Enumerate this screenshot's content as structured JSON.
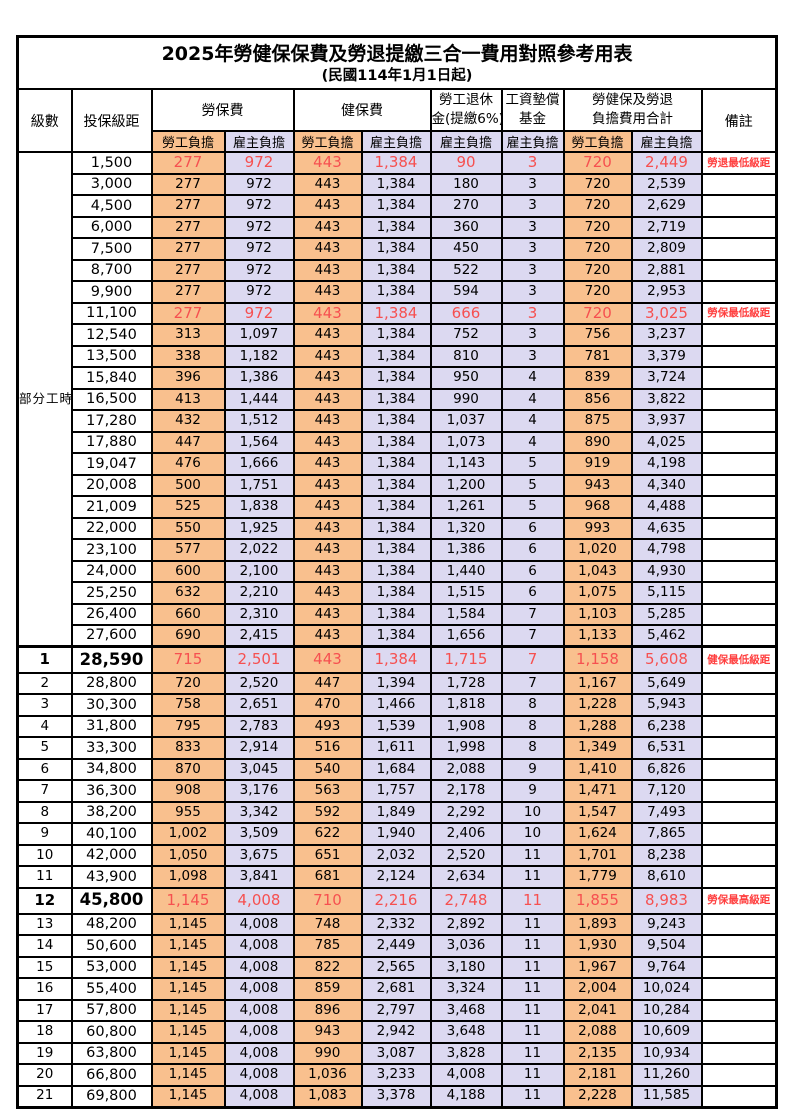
{
  "title": "2025年勞健保保費及勞退提繳三合一費用對照參考用表",
  "subtitle": "(民國114年1月1日起)",
  "colors": {
    "employee_column_bg": "#F9C08E",
    "employer_column_bg": "#DCD9F1",
    "highlight_number_red": "#F65050",
    "remark_red": "#FF4040",
    "border": "#000000"
  },
  "header": {
    "level": "級數",
    "bracket": "投保級距",
    "labor_insurance": "勞保費",
    "health_insurance": "健保費",
    "pension_line1": "勞工退休",
    "pension_line2": "金(提繳6%)",
    "wage_fund_line1": "工資墊償",
    "wage_fund_line2": "基金",
    "total_line1": "勞健保及勞退",
    "total_line2": "負擔費用合計",
    "employee_burden": "勞工負擔",
    "employer_burden": "雇主負擔",
    "remark": "備註"
  },
  "part_time_label": "部分工時",
  "part_time_rowspan": 23,
  "rows": [
    {
      "level": "",
      "bracket": "1,500",
      "li_emp": "277",
      "li_er": "972",
      "hi_emp": "443",
      "hi_er": "1,384",
      "pension": "90",
      "fund": "3",
      "tot_emp": "720",
      "tot_er": "2,449",
      "remark": "勞退最低級距",
      "red": true,
      "em": false,
      "section": false
    },
    {
      "level": "",
      "bracket": "3,000",
      "li_emp": "277",
      "li_er": "972",
      "hi_emp": "443",
      "hi_er": "1,384",
      "pension": "180",
      "fund": "3",
      "tot_emp": "720",
      "tot_er": "2,539",
      "remark": "",
      "red": false,
      "em": false,
      "section": false
    },
    {
      "level": "",
      "bracket": "4,500",
      "li_emp": "277",
      "li_er": "972",
      "hi_emp": "443",
      "hi_er": "1,384",
      "pension": "270",
      "fund": "3",
      "tot_emp": "720",
      "tot_er": "2,629",
      "remark": "",
      "red": false,
      "em": false,
      "section": false
    },
    {
      "level": "",
      "bracket": "6,000",
      "li_emp": "277",
      "li_er": "972",
      "hi_emp": "443",
      "hi_er": "1,384",
      "pension": "360",
      "fund": "3",
      "tot_emp": "720",
      "tot_er": "2,719",
      "remark": "",
      "red": false,
      "em": false,
      "section": false
    },
    {
      "level": "",
      "bracket": "7,500",
      "li_emp": "277",
      "li_er": "972",
      "hi_emp": "443",
      "hi_er": "1,384",
      "pension": "450",
      "fund": "3",
      "tot_emp": "720",
      "tot_er": "2,809",
      "remark": "",
      "red": false,
      "em": false,
      "section": false
    },
    {
      "level": "",
      "bracket": "8,700",
      "li_emp": "277",
      "li_er": "972",
      "hi_emp": "443",
      "hi_er": "1,384",
      "pension": "522",
      "fund": "3",
      "tot_emp": "720",
      "tot_er": "2,881",
      "remark": "",
      "red": false,
      "em": false,
      "section": false
    },
    {
      "level": "",
      "bracket": "9,900",
      "li_emp": "277",
      "li_er": "972",
      "hi_emp": "443",
      "hi_er": "1,384",
      "pension": "594",
      "fund": "3",
      "tot_emp": "720",
      "tot_er": "2,953",
      "remark": "",
      "red": false,
      "em": false,
      "section": false
    },
    {
      "level": "",
      "bracket": "11,100",
      "li_emp": "277",
      "li_er": "972",
      "hi_emp": "443",
      "hi_er": "1,384",
      "pension": "666",
      "fund": "3",
      "tot_emp": "720",
      "tot_er": "3,025",
      "remark": "勞保最低級距",
      "red": true,
      "em": false,
      "section": false
    },
    {
      "level": "",
      "bracket": "12,540",
      "li_emp": "313",
      "li_er": "1,097",
      "hi_emp": "443",
      "hi_er": "1,384",
      "pension": "752",
      "fund": "3",
      "tot_emp": "756",
      "tot_er": "3,237",
      "remark": "",
      "red": false,
      "em": false,
      "section": false
    },
    {
      "level": "",
      "bracket": "13,500",
      "li_emp": "338",
      "li_er": "1,182",
      "hi_emp": "443",
      "hi_er": "1,384",
      "pension": "810",
      "fund": "3",
      "tot_emp": "781",
      "tot_er": "3,379",
      "remark": "",
      "red": false,
      "em": false,
      "section": false
    },
    {
      "level": "",
      "bracket": "15,840",
      "li_emp": "396",
      "li_er": "1,386",
      "hi_emp": "443",
      "hi_er": "1,384",
      "pension": "950",
      "fund": "4",
      "tot_emp": "839",
      "tot_er": "3,724",
      "remark": "",
      "red": false,
      "em": false,
      "section": false
    },
    {
      "level": "",
      "bracket": "16,500",
      "li_emp": "413",
      "li_er": "1,444",
      "hi_emp": "443",
      "hi_er": "1,384",
      "pension": "990",
      "fund": "4",
      "tot_emp": "856",
      "tot_er": "3,822",
      "remark": "",
      "red": false,
      "em": false,
      "section": false
    },
    {
      "level": "",
      "bracket": "17,280",
      "li_emp": "432",
      "li_er": "1,512",
      "hi_emp": "443",
      "hi_er": "1,384",
      "pension": "1,037",
      "fund": "4",
      "tot_emp": "875",
      "tot_er": "3,937",
      "remark": "",
      "red": false,
      "em": false,
      "section": false
    },
    {
      "level": "",
      "bracket": "17,880",
      "li_emp": "447",
      "li_er": "1,564",
      "hi_emp": "443",
      "hi_er": "1,384",
      "pension": "1,073",
      "fund": "4",
      "tot_emp": "890",
      "tot_er": "4,025",
      "remark": "",
      "red": false,
      "em": false,
      "section": false
    },
    {
      "level": "",
      "bracket": "19,047",
      "li_emp": "476",
      "li_er": "1,666",
      "hi_emp": "443",
      "hi_er": "1,384",
      "pension": "1,143",
      "fund": "5",
      "tot_emp": "919",
      "tot_er": "4,198",
      "remark": "",
      "red": false,
      "em": false,
      "section": false
    },
    {
      "level": "",
      "bracket": "20,008",
      "li_emp": "500",
      "li_er": "1,751",
      "hi_emp": "443",
      "hi_er": "1,384",
      "pension": "1,200",
      "fund": "5",
      "tot_emp": "943",
      "tot_er": "4,340",
      "remark": "",
      "red": false,
      "em": false,
      "section": false
    },
    {
      "level": "",
      "bracket": "21,009",
      "li_emp": "525",
      "li_er": "1,838",
      "hi_emp": "443",
      "hi_er": "1,384",
      "pension": "1,261",
      "fund": "5",
      "tot_emp": "968",
      "tot_er": "4,488",
      "remark": "",
      "red": false,
      "em": false,
      "section": false
    },
    {
      "level": "",
      "bracket": "22,000",
      "li_emp": "550",
      "li_er": "1,925",
      "hi_emp": "443",
      "hi_er": "1,384",
      "pension": "1,320",
      "fund": "6",
      "tot_emp": "993",
      "tot_er": "4,635",
      "remark": "",
      "red": false,
      "em": false,
      "section": false
    },
    {
      "level": "",
      "bracket": "23,100",
      "li_emp": "577",
      "li_er": "2,022",
      "hi_emp": "443",
      "hi_er": "1,384",
      "pension": "1,386",
      "fund": "6",
      "tot_emp": "1,020",
      "tot_er": "4,798",
      "remark": "",
      "red": false,
      "em": false,
      "section": false
    },
    {
      "level": "",
      "bracket": "24,000",
      "li_emp": "600",
      "li_er": "2,100",
      "hi_emp": "443",
      "hi_er": "1,384",
      "pension": "1,440",
      "fund": "6",
      "tot_emp": "1,043",
      "tot_er": "4,930",
      "remark": "",
      "red": false,
      "em": false,
      "section": false
    },
    {
      "level": "",
      "bracket": "25,250",
      "li_emp": "632",
      "li_er": "2,210",
      "hi_emp": "443",
      "hi_er": "1,384",
      "pension": "1,515",
      "fund": "6",
      "tot_emp": "1,075",
      "tot_er": "5,115",
      "remark": "",
      "red": false,
      "em": false,
      "section": false
    },
    {
      "level": "",
      "bracket": "26,400",
      "li_emp": "660",
      "li_er": "2,310",
      "hi_emp": "443",
      "hi_er": "1,384",
      "pension": "1,584",
      "fund": "7",
      "tot_emp": "1,103",
      "tot_er": "5,285",
      "remark": "",
      "red": false,
      "em": false,
      "section": false
    },
    {
      "level": "",
      "bracket": "27,600",
      "li_emp": "690",
      "li_er": "2,415",
      "hi_emp": "443",
      "hi_er": "1,384",
      "pension": "1,656",
      "fund": "7",
      "tot_emp": "1,133",
      "tot_er": "5,462",
      "remark": "",
      "red": false,
      "em": false,
      "section": false
    },
    {
      "level": "1",
      "bracket": "28,590",
      "li_emp": "715",
      "li_er": "2,501",
      "hi_emp": "443",
      "hi_er": "1,384",
      "pension": "1,715",
      "fund": "7",
      "tot_emp": "1,158",
      "tot_er": "5,608",
      "remark": "健保最低級距",
      "red": true,
      "em": true,
      "section": true
    },
    {
      "level": "2",
      "bracket": "28,800",
      "li_emp": "720",
      "li_er": "2,520",
      "hi_emp": "447",
      "hi_er": "1,394",
      "pension": "1,728",
      "fund": "7",
      "tot_emp": "1,167",
      "tot_er": "5,649",
      "remark": "",
      "red": false,
      "em": false,
      "section": false
    },
    {
      "level": "3",
      "bracket": "30,300",
      "li_emp": "758",
      "li_er": "2,651",
      "hi_emp": "470",
      "hi_er": "1,466",
      "pension": "1,818",
      "fund": "8",
      "tot_emp": "1,228",
      "tot_er": "5,943",
      "remark": "",
      "red": false,
      "em": false,
      "section": false
    },
    {
      "level": "4",
      "bracket": "31,800",
      "li_emp": "795",
      "li_er": "2,783",
      "hi_emp": "493",
      "hi_er": "1,539",
      "pension": "1,908",
      "fund": "8",
      "tot_emp": "1,288",
      "tot_er": "6,238",
      "remark": "",
      "red": false,
      "em": false,
      "section": false
    },
    {
      "level": "5",
      "bracket": "33,300",
      "li_emp": "833",
      "li_er": "2,914",
      "hi_emp": "516",
      "hi_er": "1,611",
      "pension": "1,998",
      "fund": "8",
      "tot_emp": "1,349",
      "tot_er": "6,531",
      "remark": "",
      "red": false,
      "em": false,
      "section": false
    },
    {
      "level": "6",
      "bracket": "34,800",
      "li_emp": "870",
      "li_er": "3,045",
      "hi_emp": "540",
      "hi_er": "1,684",
      "pension": "2,088",
      "fund": "9",
      "tot_emp": "1,410",
      "tot_er": "6,826",
      "remark": "",
      "red": false,
      "em": false,
      "section": false
    },
    {
      "level": "7",
      "bracket": "36,300",
      "li_emp": "908",
      "li_er": "3,176",
      "hi_emp": "563",
      "hi_er": "1,757",
      "pension": "2,178",
      "fund": "9",
      "tot_emp": "1,471",
      "tot_er": "7,120",
      "remark": "",
      "red": false,
      "em": false,
      "section": false
    },
    {
      "level": "8",
      "bracket": "38,200",
      "li_emp": "955",
      "li_er": "3,342",
      "hi_emp": "592",
      "hi_er": "1,849",
      "pension": "2,292",
      "fund": "10",
      "tot_emp": "1,547",
      "tot_er": "7,493",
      "remark": "",
      "red": false,
      "em": false,
      "section": false
    },
    {
      "level": "9",
      "bracket": "40,100",
      "li_emp": "1,002",
      "li_er": "3,509",
      "hi_emp": "622",
      "hi_er": "1,940",
      "pension": "2,406",
      "fund": "10",
      "tot_emp": "1,624",
      "tot_er": "7,865",
      "remark": "",
      "red": false,
      "em": false,
      "section": false
    },
    {
      "level": "10",
      "bracket": "42,000",
      "li_emp": "1,050",
      "li_er": "3,675",
      "hi_emp": "651",
      "hi_er": "2,032",
      "pension": "2,520",
      "fund": "11",
      "tot_emp": "1,701",
      "tot_er": "8,238",
      "remark": "",
      "red": false,
      "em": false,
      "section": false
    },
    {
      "level": "11",
      "bracket": "43,900",
      "li_emp": "1,098",
      "li_er": "3,841",
      "hi_emp": "681",
      "hi_er": "2,124",
      "pension": "2,634",
      "fund": "11",
      "tot_emp": "1,779",
      "tot_er": "8,610",
      "remark": "",
      "red": false,
      "em": false,
      "section": false
    },
    {
      "level": "12",
      "bracket": "45,800",
      "li_emp": "1,145",
      "li_er": "4,008",
      "hi_emp": "710",
      "hi_er": "2,216",
      "pension": "2,748",
      "fund": "11",
      "tot_emp": "1,855",
      "tot_er": "8,983",
      "remark": "勞保最高級距",
      "red": true,
      "em": true,
      "section": false
    },
    {
      "level": "13",
      "bracket": "48,200",
      "li_emp": "1,145",
      "li_er": "4,008",
      "hi_emp": "748",
      "hi_er": "2,332",
      "pension": "2,892",
      "fund": "11",
      "tot_emp": "1,893",
      "tot_er": "9,243",
      "remark": "",
      "red": false,
      "em": false,
      "section": false
    },
    {
      "level": "14",
      "bracket": "50,600",
      "li_emp": "1,145",
      "li_er": "4,008",
      "hi_emp": "785",
      "hi_er": "2,449",
      "pension": "3,036",
      "fund": "11",
      "tot_emp": "1,930",
      "tot_er": "9,504",
      "remark": "",
      "red": false,
      "em": false,
      "section": false
    },
    {
      "level": "15",
      "bracket": "53,000",
      "li_emp": "1,145",
      "li_er": "4,008",
      "hi_emp": "822",
      "hi_er": "2,565",
      "pension": "3,180",
      "fund": "11",
      "tot_emp": "1,967",
      "tot_er": "9,764",
      "remark": "",
      "red": false,
      "em": false,
      "section": false
    },
    {
      "level": "16",
      "bracket": "55,400",
      "li_emp": "1,145",
      "li_er": "4,008",
      "hi_emp": "859",
      "hi_er": "2,681",
      "pension": "3,324",
      "fund": "11",
      "tot_emp": "2,004",
      "tot_er": "10,024",
      "remark": "",
      "red": false,
      "em": false,
      "section": false
    },
    {
      "level": "17",
      "bracket": "57,800",
      "li_emp": "1,145",
      "li_er": "4,008",
      "hi_emp": "896",
      "hi_er": "2,797",
      "pension": "3,468",
      "fund": "11",
      "tot_emp": "2,041",
      "tot_er": "10,284",
      "remark": "",
      "red": false,
      "em": false,
      "section": false
    },
    {
      "level": "18",
      "bracket": "60,800",
      "li_emp": "1,145",
      "li_er": "4,008",
      "hi_emp": "943",
      "hi_er": "2,942",
      "pension": "3,648",
      "fund": "11",
      "tot_emp": "2,088",
      "tot_er": "10,609",
      "remark": "",
      "red": false,
      "em": false,
      "section": false
    },
    {
      "level": "19",
      "bracket": "63,800",
      "li_emp": "1,145",
      "li_er": "4,008",
      "hi_emp": "990",
      "hi_er": "3,087",
      "pension": "3,828",
      "fund": "11",
      "tot_emp": "2,135",
      "tot_er": "10,934",
      "remark": "",
      "red": false,
      "em": false,
      "section": false
    },
    {
      "level": "20",
      "bracket": "66,800",
      "li_emp": "1,145",
      "li_er": "4,008",
      "hi_emp": "1,036",
      "hi_er": "3,233",
      "pension": "4,008",
      "fund": "11",
      "tot_emp": "2,181",
      "tot_er": "11,260",
      "remark": "",
      "red": false,
      "em": false,
      "section": false
    },
    {
      "level": "21",
      "bracket": "69,800",
      "li_emp": "1,145",
      "li_er": "4,008",
      "hi_emp": "1,083",
      "hi_er": "3,378",
      "pension": "4,188",
      "fund": "11",
      "tot_emp": "2,228",
      "tot_er": "11,585",
      "remark": "",
      "red": false,
      "em": false,
      "section": false
    }
  ]
}
